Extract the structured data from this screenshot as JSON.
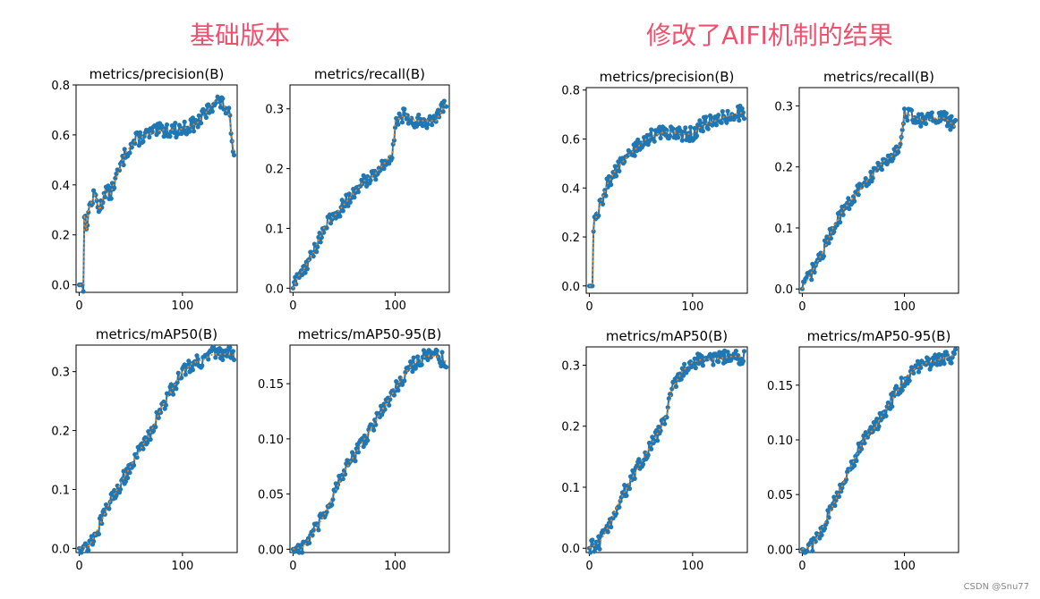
{
  "headings": {
    "left": "基础版本",
    "right": "修改了AIFI机制的结果"
  },
  "watermark": "CSDN @Snu77",
  "colors": {
    "heading": "#f0506e",
    "series_line": "#1f77b4",
    "smooth_line": "#ff7f0e"
  },
  "chart_data": [
    {
      "group": "left",
      "type": "line",
      "title": "metrics/precision(B)",
      "xlim": [
        -3,
        153
      ],
      "ylim": [
        -0.03,
        0.8
      ],
      "xticks": [
        0,
        100
      ],
      "yticks": [
        0.0,
        0.2,
        0.4,
        0.6,
        0.8
      ],
      "ytick_labels": [
        "0.0",
        "0.2",
        "0.4",
        "0.6",
        "0.8"
      ],
      "keypoints": [
        [
          0,
          0
        ],
        [
          4,
          0
        ],
        [
          5,
          0.28
        ],
        [
          7,
          0.22
        ],
        [
          9,
          0.3
        ],
        [
          15,
          0.36
        ],
        [
          20,
          0.3
        ],
        [
          25,
          0.38
        ],
        [
          30,
          0.36
        ],
        [
          35,
          0.42
        ],
        [
          40,
          0.47
        ],
        [
          45,
          0.53
        ],
        [
          55,
          0.58
        ],
        [
          65,
          0.6
        ],
        [
          80,
          0.62
        ],
        [
          95,
          0.62
        ],
        [
          105,
          0.63
        ],
        [
          115,
          0.65
        ],
        [
          125,
          0.7
        ],
        [
          132,
          0.74
        ],
        [
          140,
          0.72
        ],
        [
          145,
          0.68
        ],
        [
          150,
          0.53
        ]
      ]
    },
    {
      "group": "left",
      "type": "line",
      "title": "metrics/recall(B)",
      "xlim": [
        -3,
        153
      ],
      "ylim": [
        -0.007,
        0.34
      ],
      "xticks": [
        0,
        100
      ],
      "yticks": [
        0.0,
        0.1,
        0.2,
        0.3
      ],
      "ytick_labels": [
        "0.0",
        "0.1",
        "0.2",
        "0.3"
      ],
      "keypoints": [
        [
          0,
          0
        ],
        [
          5,
          0.02
        ],
        [
          10,
          0.03
        ],
        [
          20,
          0.06
        ],
        [
          30,
          0.1
        ],
        [
          40,
          0.12
        ],
        [
          50,
          0.14
        ],
        [
          60,
          0.16
        ],
        [
          70,
          0.18
        ],
        [
          80,
          0.19
        ],
        [
          90,
          0.21
        ],
        [
          98,
          0.23
        ],
        [
          100,
          0.28
        ],
        [
          110,
          0.29
        ],
        [
          120,
          0.28
        ],
        [
          130,
          0.28
        ],
        [
          140,
          0.28
        ],
        [
          150,
          0.31
        ]
      ]
    },
    {
      "group": "left",
      "type": "line",
      "title": "metrics/mAP50(B)",
      "xlim": [
        -3,
        153
      ],
      "ylim": [
        -0.007,
        0.345
      ],
      "xticks": [
        0,
        100
      ],
      "yticks": [
        0.0,
        0.1,
        0.2,
        0.3
      ],
      "ytick_labels": [
        "0.0",
        "0.1",
        "0.2",
        "0.3"
      ],
      "keypoints": [
        [
          0,
          0
        ],
        [
          10,
          0.005
        ],
        [
          20,
          0.04
        ],
        [
          30,
          0.08
        ],
        [
          40,
          0.11
        ],
        [
          50,
          0.14
        ],
        [
          60,
          0.17
        ],
        [
          70,
          0.2
        ],
        [
          80,
          0.24
        ],
        [
          90,
          0.27
        ],
        [
          100,
          0.3
        ],
        [
          110,
          0.315
        ],
        [
          120,
          0.32
        ],
        [
          130,
          0.33
        ],
        [
          140,
          0.33
        ],
        [
          150,
          0.328
        ]
      ]
    },
    {
      "group": "left",
      "type": "line",
      "title": "metrics/mAP50-95(B)",
      "xlim": [
        -3,
        153
      ],
      "ylim": [
        -0.003,
        0.185
      ],
      "xticks": [
        0,
        100
      ],
      "yticks": [
        0.0,
        0.05,
        0.1,
        0.15
      ],
      "ytick_labels": [
        "0.00",
        "0.05",
        "0.10",
        "0.15"
      ],
      "keypoints": [
        [
          0,
          0
        ],
        [
          10,
          0.002
        ],
        [
          20,
          0.015
        ],
        [
          30,
          0.03
        ],
        [
          40,
          0.05
        ],
        [
          50,
          0.07
        ],
        [
          60,
          0.085
        ],
        [
          70,
          0.1
        ],
        [
          80,
          0.115
        ],
        [
          90,
          0.13
        ],
        [
          100,
          0.145
        ],
        [
          110,
          0.16
        ],
        [
          120,
          0.17
        ],
        [
          130,
          0.175
        ],
        [
          140,
          0.175
        ],
        [
          150,
          0.17
        ]
      ]
    },
    {
      "group": "right",
      "type": "line",
      "title": "metrics/precision(B)",
      "xlim": [
        -3,
        153
      ],
      "ylim": [
        -0.03,
        0.81
      ],
      "xticks": [
        0,
        100
      ],
      "yticks": [
        0.0,
        0.2,
        0.4,
        0.6,
        0.8
      ],
      "ytick_labels": [
        "0.0",
        "0.2",
        "0.4",
        "0.6",
        "0.8"
      ],
      "keypoints": [
        [
          0,
          0
        ],
        [
          3,
          0
        ],
        [
          4,
          0.25
        ],
        [
          8,
          0.3
        ],
        [
          12,
          0.35
        ],
        [
          18,
          0.42
        ],
        [
          25,
          0.47
        ],
        [
          35,
          0.52
        ],
        [
          45,
          0.56
        ],
        [
          55,
          0.6
        ],
        [
          65,
          0.62
        ],
        [
          75,
          0.63
        ],
        [
          90,
          0.62
        ],
        [
          100,
          0.62
        ],
        [
          110,
          0.66
        ],
        [
          120,
          0.67
        ],
        [
          130,
          0.69
        ],
        [
          140,
          0.7
        ],
        [
          150,
          0.71
        ]
      ]
    },
    {
      "group": "right",
      "type": "line",
      "title": "metrics/recall(B)",
      "xlim": [
        -3,
        153
      ],
      "ylim": [
        -0.007,
        0.33
      ],
      "xticks": [
        0,
        100
      ],
      "yticks": [
        0.0,
        0.1,
        0.2,
        0.3
      ],
      "ytick_labels": [
        "0.0",
        "0.1",
        "0.2",
        "0.3"
      ],
      "keypoints": [
        [
          0,
          0
        ],
        [
          5,
          0.015
        ],
        [
          10,
          0.03
        ],
        [
          20,
          0.06
        ],
        [
          30,
          0.1
        ],
        [
          40,
          0.13
        ],
        [
          50,
          0.15
        ],
        [
          60,
          0.17
        ],
        [
          70,
          0.19
        ],
        [
          80,
          0.21
        ],
        [
          90,
          0.22
        ],
        [
          96,
          0.24
        ],
        [
          100,
          0.29
        ],
        [
          110,
          0.28
        ],
        [
          120,
          0.275
        ],
        [
          130,
          0.28
        ],
        [
          140,
          0.28
        ],
        [
          150,
          0.265
        ]
      ]
    },
    {
      "group": "right",
      "type": "line",
      "title": "metrics/mAP50(B)",
      "xlim": [
        -3,
        153
      ],
      "ylim": [
        -0.007,
        0.33
      ],
      "xticks": [
        0,
        100
      ],
      "yticks": [
        0.0,
        0.1,
        0.2,
        0.3
      ],
      "ytick_labels": [
        "0.0",
        "0.1",
        "0.2",
        "0.3"
      ],
      "keypoints": [
        [
          0,
          0
        ],
        [
          10,
          0.01
        ],
        [
          20,
          0.04
        ],
        [
          30,
          0.08
        ],
        [
          40,
          0.11
        ],
        [
          50,
          0.14
        ],
        [
          60,
          0.17
        ],
        [
          70,
          0.2
        ],
        [
          75,
          0.22
        ],
        [
          80,
          0.26
        ],
        [
          90,
          0.29
        ],
        [
          100,
          0.305
        ],
        [
          110,
          0.31
        ],
        [
          120,
          0.31
        ],
        [
          130,
          0.312
        ],
        [
          140,
          0.315
        ],
        [
          150,
          0.313
        ]
      ]
    },
    {
      "group": "right",
      "type": "line",
      "title": "metrics/mAP50-95(B)",
      "xlim": [
        -3,
        153
      ],
      "ylim": [
        -0.003,
        0.185
      ],
      "xticks": [
        0,
        100
      ],
      "yticks": [
        0.0,
        0.05,
        0.1,
        0.15
      ],
      "ytick_labels": [
        "0.00",
        "0.05",
        "0.10",
        "0.15"
      ],
      "keypoints": [
        [
          0,
          0
        ],
        [
          10,
          0.004
        ],
        [
          20,
          0.02
        ],
        [
          30,
          0.04
        ],
        [
          40,
          0.06
        ],
        [
          50,
          0.08
        ],
        [
          60,
          0.1
        ],
        [
          70,
          0.11
        ],
        [
          80,
          0.125
        ],
        [
          90,
          0.14
        ],
        [
          100,
          0.155
        ],
        [
          110,
          0.165
        ],
        [
          120,
          0.17
        ],
        [
          130,
          0.172
        ],
        [
          140,
          0.175
        ],
        [
          150,
          0.178
        ]
      ]
    }
  ]
}
